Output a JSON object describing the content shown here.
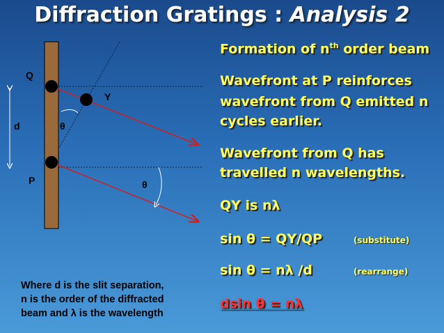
{
  "title": {
    "plain": "Diffraction Gratings : ",
    "italic": "Analysis 2"
  },
  "diagram": {
    "labels": [
      "Q",
      "Y",
      "d",
      "θ",
      "P",
      "θ"
    ]
  },
  "heading": {
    "before": "Formation of n",
    "sup": "th",
    "after": " order beam"
  },
  "lines": [
    "Wavefront at P reinforces",
    "wavefront from Q emitted n",
    "cycles earlier.",
    "Wavefront from Q has",
    "travelled n wavelengths.",
    "QY is nλ"
  ],
  "equations": [
    {
      "text": "sin θ = QY/QP",
      "note": "(substitute)"
    },
    {
      "text": "sin θ = nλ /d",
      "note": "(rearrange)"
    }
  ],
  "result": "dsin θ = nλ",
  "caption": [
    "Where d is the slit separation,",
    "n is the order of the diffracted",
    "beam and λ is the wavelength"
  ]
}
